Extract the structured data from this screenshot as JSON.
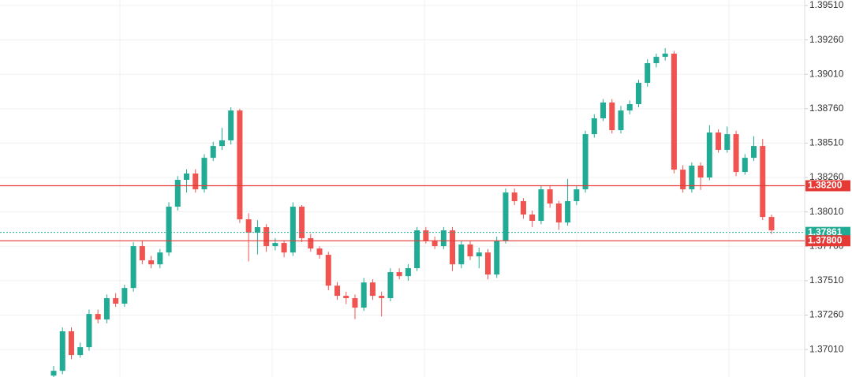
{
  "chart_data": {
    "type": "candlestick",
    "up_color": "#22ab94",
    "down_color": "#f05350",
    "grid": true,
    "open": [
      1.3682,
      1.36855,
      1.37142,
      1.3697,
      1.37027,
      1.37268,
      1.37228,
      1.37383,
      1.37343,
      1.37457,
      1.37761,
      1.37658,
      1.37629,
      1.37715,
      1.38048,
      1.38243,
      1.38289,
      1.38174,
      1.38403,
      1.38489,
      1.3853,
      1.38747,
      1.37956,
      1.37859,
      1.37899,
      1.37761,
      1.37784,
      1.37715,
      1.38048,
      1.37819,
      1.37744,
      1.37698,
      1.37474,
      1.374,
      1.37383,
      1.37314,
      1.37497,
      1.374,
      1.37383,
      1.37572,
      1.37543,
      1.37601,
      1.37876,
      1.37801,
      1.37761,
      1.37876,
      1.37629,
      1.37773,
      1.37687,
      1.37715,
      1.37555,
      1.37801,
      1.38151,
      1.38088,
      1.37991,
      1.37945,
      1.38174,
      1.38071,
      1.37933,
      1.38088,
      1.38174,
      1.38575,
      1.3869,
      1.38805,
      1.38604,
      1.38747,
      1.38793,
      1.38948,
      1.39091,
      1.39137,
      1.3916,
      1.38317,
      1.38174,
      1.38346,
      1.3826,
      1.38587,
      1.38461,
      1.38575,
      1.383,
      1.38403,
      1.38489,
      1.37973
    ],
    "high": [
      1.3689,
      1.3717,
      1.3717,
      1.3706,
      1.373,
      1.373,
      1.3741,
      1.3742,
      1.3748,
      1.3779,
      1.378,
      1.3769,
      1.3774,
      1.3808,
      1.3827,
      1.3832,
      1.3832,
      1.3843,
      1.3852,
      1.3862,
      1.3877,
      1.3876,
      1.38,
      1.3795,
      1.3792,
      1.3782,
      1.378,
      1.3808,
      1.3806,
      1.3785,
      1.3776,
      1.3772,
      1.375,
      1.3743,
      1.3741,
      1.3753,
      1.3752,
      1.3743,
      1.376,
      1.376,
      1.3763,
      1.379,
      1.379,
      1.3783,
      1.379,
      1.379,
      1.378,
      1.378,
      1.3775,
      1.3774,
      1.3783,
      1.3818,
      1.3818,
      1.3811,
      1.3802,
      1.382,
      1.382,
      1.3809,
      1.3825,
      1.382,
      1.386,
      1.3872,
      1.3883,
      1.3883,
      1.3878,
      1.3882,
      1.3897,
      1.3912,
      1.3916,
      1.392,
      1.3918,
      1.3835,
      1.3837,
      1.3837,
      1.3864,
      1.3861,
      1.3863,
      1.386,
      1.3843,
      1.3856,
      1.3854,
      1.3799
    ],
    "low": [
      1.368,
      1.3683,
      1.3694,
      1.3695,
      1.37,
      1.372,
      1.372,
      1.3732,
      1.3732,
      1.3743,
      1.3763,
      1.376,
      1.376,
      1.3769,
      1.3802,
      1.3815,
      1.3815,
      1.3815,
      1.3838,
      1.3846,
      1.385,
      1.3793,
      1.3765,
      1.377,
      1.3772,
      1.3773,
      1.3768,
      1.3769,
      1.3779,
      1.3772,
      1.3767,
      1.3744,
      1.3737,
      1.3734,
      1.3723,
      1.3729,
      1.3737,
      1.3725,
      1.3736,
      1.3752,
      1.3751,
      1.3758,
      1.3778,
      1.3774,
      1.3774,
      1.3758,
      1.376,
      1.3766,
      1.376,
      1.3752,
      1.3753,
      1.3778,
      1.3806,
      1.3796,
      1.379,
      1.3792,
      1.3804,
      1.3788,
      1.3791,
      1.3806,
      1.3815,
      1.3855,
      1.3867,
      1.3858,
      1.3858,
      1.3872,
      1.3877,
      1.3892,
      1.3906,
      1.3911,
      1.3829,
      1.3815,
      1.3815,
      1.3817,
      1.3824,
      1.3844,
      1.3844,
      1.3827,
      1.3828,
      1.3838,
      1.3795,
      1.3785
    ],
    "close": [
      1.36855,
      1.37142,
      1.3697,
      1.37027,
      1.37268,
      1.37228,
      1.37383,
      1.37343,
      1.37457,
      1.37761,
      1.37658,
      1.37629,
      1.37715,
      1.38048,
      1.38243,
      1.38289,
      1.38174,
      1.38403,
      1.38489,
      1.3853,
      1.38747,
      1.37956,
      1.37859,
      1.37899,
      1.37761,
      1.37784,
      1.37715,
      1.38048,
      1.37819,
      1.37744,
      1.37698,
      1.37474,
      1.374,
      1.37383,
      1.37314,
      1.37497,
      1.374,
      1.37383,
      1.37572,
      1.37543,
      1.37601,
      1.37876,
      1.37801,
      1.37761,
      1.37876,
      1.37629,
      1.37773,
      1.37687,
      1.37715,
      1.37555,
      1.37801,
      1.38151,
      1.38088,
      1.37991,
      1.37945,
      1.38174,
      1.38071,
      1.37933,
      1.38088,
      1.38174,
      1.38575,
      1.3869,
      1.38805,
      1.38604,
      1.38747,
      1.38793,
      1.38948,
      1.39091,
      1.39137,
      1.3916,
      1.38317,
      1.38174,
      1.38346,
      1.3826,
      1.38587,
      1.38461,
      1.38575,
      1.383,
      1.38403,
      1.38489,
      1.37973,
      1.37876
    ],
    "ylim": [
      1.3681,
      1.3955
    ],
    "yticks": [
      {
        "value": 1.3951,
        "label": "1.39510"
      },
      {
        "value": 1.3926,
        "label": "1.39260"
      },
      {
        "value": 1.3901,
        "label": "1.39010"
      },
      {
        "value": 1.3876,
        "label": "1.38760"
      },
      {
        "value": 1.3851,
        "label": "1.38510"
      },
      {
        "value": 1.3826,
        "label": "1.38260"
      },
      {
        "value": 1.3801,
        "label": "1.38010"
      },
      {
        "value": 1.3776,
        "label": "1.37760"
      },
      {
        "value": 1.3751,
        "label": "1.37510"
      },
      {
        "value": 1.3726,
        "label": "1.37260"
      },
      {
        "value": 1.3701,
        "label": "1.37010"
      }
    ],
    "current_price": 1.37861,
    "current_color": "#22ab94",
    "hlines": [
      {
        "value": 1.382,
        "label": "1.38200",
        "color": "#e53935"
      },
      {
        "value": 1.378,
        "label": "1.37800",
        "color": "#e53935"
      }
    ]
  }
}
